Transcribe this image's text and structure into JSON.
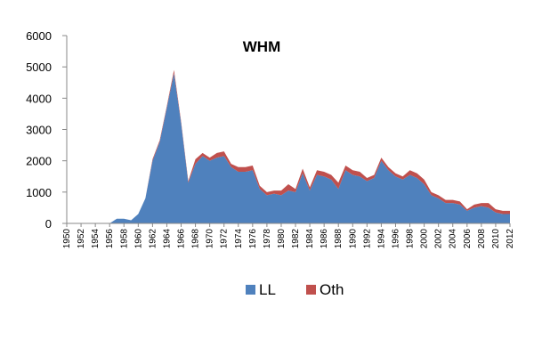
{
  "chart_data": {
    "type": "area",
    "stacked": true,
    "title": "WHM",
    "xlabel": "",
    "ylabel": "",
    "ylim": [
      0,
      6000
    ],
    "yticks": [
      0,
      1000,
      2000,
      3000,
      4000,
      5000,
      6000
    ],
    "xticks": [
      "1950",
      "1952",
      "1954",
      "1956",
      "1958",
      "1960",
      "1962",
      "1964",
      "1966",
      "1968",
      "1970",
      "1972",
      "1974",
      "1976",
      "1978",
      "1980",
      "1982",
      "1984",
      "1986",
      "1988",
      "1990",
      "1992",
      "1994",
      "1996",
      "1998",
      "2000",
      "2002",
      "2004",
      "2006",
      "2008",
      "2010",
      "2012"
    ],
    "grid": false,
    "legend": "bottom",
    "x": [
      1950,
      1951,
      1952,
      1953,
      1954,
      1955,
      1956,
      1957,
      1958,
      1959,
      1960,
      1961,
      1962,
      1963,
      1964,
      1965,
      1966,
      1967,
      1968,
      1969,
      1970,
      1971,
      1972,
      1973,
      1974,
      1975,
      1976,
      1977,
      1978,
      1979,
      1980,
      1981,
      1982,
      1983,
      1984,
      1985,
      1986,
      1987,
      1988,
      1989,
      1990,
      1991,
      1992,
      1993,
      1994,
      1995,
      1996,
      1997,
      1998,
      1999,
      2000,
      2001,
      2002,
      2003,
      2004,
      2005,
      2006,
      2007,
      2008,
      2009,
      2010,
      2011,
      2012
    ],
    "series": [
      {
        "name": "LL",
        "color": "#4f81bd",
        "values": [
          0,
          0,
          0,
          0,
          0,
          0,
          0,
          150,
          150,
          100,
          300,
          800,
          2000,
          2600,
          3700,
          4800,
          3200,
          1300,
          1900,
          2150,
          2000,
          2100,
          2150,
          1800,
          1650,
          1650,
          1700,
          1100,
          900,
          950,
          900,
          1050,
          1000,
          1600,
          1050,
          1550,
          1500,
          1400,
          1100,
          1700,
          1550,
          1500,
          1350,
          1450,
          2000,
          1700,
          1500,
          1400,
          1550,
          1450,
          1250,
          900,
          800,
          650,
          650,
          600,
          400,
          500,
          550,
          500,
          350,
          300,
          300
        ]
      },
      {
        "name": "Oth",
        "color": "#c0504d",
        "values": [
          0,
          0,
          0,
          0,
          0,
          0,
          0,
          0,
          0,
          0,
          0,
          0,
          50,
          50,
          50,
          100,
          50,
          50,
          150,
          100,
          100,
          150,
          150,
          100,
          150,
          150,
          150,
          100,
          100,
          100,
          150,
          200,
          100,
          150,
          100,
          150,
          150,
          150,
          200,
          150,
          150,
          150,
          100,
          100,
          100,
          100,
          100,
          100,
          150,
          150,
          150,
          100,
          100,
          100,
          100,
          100,
          50,
          100,
          100,
          150,
          100,
          100,
          100
        ]
      }
    ]
  }
}
